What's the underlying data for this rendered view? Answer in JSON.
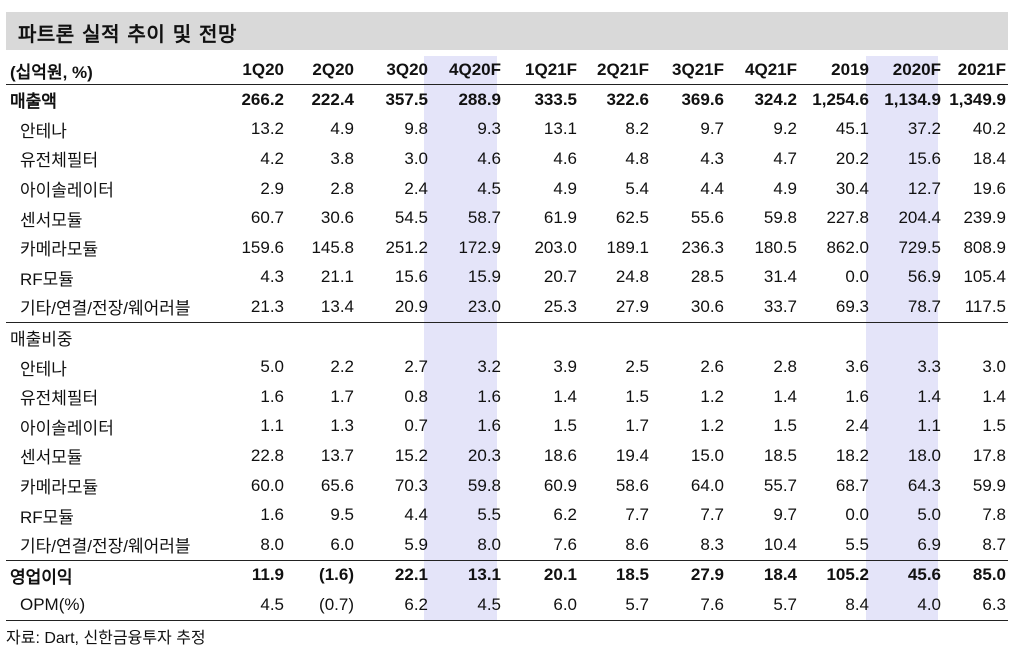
{
  "title": "파트론 실적 추이 및 전망",
  "header": {
    "unit": "(십억원, %)",
    "columns": [
      "1Q20",
      "2Q20",
      "3Q20",
      "4Q20F",
      "1Q21F",
      "2Q21F",
      "3Q21F",
      "4Q21F",
      "2019",
      "2020F",
      "2021F"
    ]
  },
  "rows": [
    {
      "label": "매출액",
      "values": [
        "266.2",
        "222.4",
        "357.5",
        "288.9",
        "333.5",
        "322.6",
        "369.6",
        "324.2",
        "1,254.6",
        "1,134.9",
        "1,349.9"
      ]
    },
    {
      "label": "안테나",
      "values": [
        "13.2",
        "4.9",
        "9.8",
        "9.3",
        "13.1",
        "8.2",
        "9.7",
        "9.2",
        "45.1",
        "37.2",
        "40.2"
      ]
    },
    {
      "label": "유전체필터",
      "values": [
        "4.2",
        "3.8",
        "3.0",
        "4.6",
        "4.6",
        "4.8",
        "4.3",
        "4.7",
        "20.2",
        "15.6",
        "18.4"
      ]
    },
    {
      "label": "아이솔레이터",
      "values": [
        "2.9",
        "2.8",
        "2.4",
        "4.5",
        "4.9",
        "5.4",
        "4.4",
        "4.9",
        "30.4",
        "12.7",
        "19.6"
      ]
    },
    {
      "label": "센서모듈",
      "values": [
        "60.7",
        "30.6",
        "54.5",
        "58.7",
        "61.9",
        "62.5",
        "55.6",
        "59.8",
        "227.8",
        "204.4",
        "239.9"
      ]
    },
    {
      "label": "카메라모듈",
      "values": [
        "159.6",
        "145.8",
        "251.2",
        "172.9",
        "203.0",
        "189.1",
        "236.3",
        "180.5",
        "862.0",
        "729.5",
        "808.9"
      ]
    },
    {
      "label": "RF모듈",
      "values": [
        "4.3",
        "21.1",
        "15.6",
        "15.9",
        "20.7",
        "24.8",
        "28.5",
        "31.4",
        "0.0",
        "56.9",
        "105.4"
      ]
    },
    {
      "label": "기타/연결/전장/웨어러블",
      "values": [
        "21.3",
        "13.4",
        "20.9",
        "23.0",
        "25.3",
        "27.9",
        "30.6",
        "33.7",
        "69.3",
        "78.7",
        "117.5"
      ]
    },
    {
      "label": "매출비중",
      "values": [
        "",
        "",
        "",
        "",
        "",
        "",
        "",
        "",
        "",
        "",
        ""
      ]
    },
    {
      "label": "안테나",
      "values": [
        "5.0",
        "2.2",
        "2.7",
        "3.2",
        "3.9",
        "2.5",
        "2.6",
        "2.8",
        "3.6",
        "3.3",
        "3.0"
      ]
    },
    {
      "label": "유전체필터",
      "values": [
        "1.6",
        "1.7",
        "0.8",
        "1.6",
        "1.4",
        "1.5",
        "1.2",
        "1.4",
        "1.6",
        "1.4",
        "1.4"
      ]
    },
    {
      "label": "아이솔레이터",
      "values": [
        "1.1",
        "1.3",
        "0.7",
        "1.6",
        "1.5",
        "1.7",
        "1.2",
        "1.5",
        "2.4",
        "1.1",
        "1.5"
      ]
    },
    {
      "label": "센서모듈",
      "values": [
        "22.8",
        "13.7",
        "15.2",
        "20.3",
        "18.6",
        "19.4",
        "15.0",
        "18.5",
        "18.2",
        "18.0",
        "17.8"
      ]
    },
    {
      "label": "카메라모듈",
      "values": [
        "60.0",
        "65.6",
        "70.3",
        "59.8",
        "60.9",
        "58.6",
        "64.0",
        "55.7",
        "68.7",
        "64.3",
        "59.9"
      ]
    },
    {
      "label": "RF모듈",
      "values": [
        "1.6",
        "9.5",
        "4.4",
        "5.5",
        "6.2",
        "7.7",
        "7.7",
        "9.7",
        "0.0",
        "5.0",
        "7.8"
      ]
    },
    {
      "label": "기타/연결/전장/웨어러블",
      "values": [
        "8.0",
        "6.0",
        "5.9",
        "8.0",
        "7.6",
        "8.6",
        "8.3",
        "10.4",
        "5.5",
        "6.9",
        "8.7"
      ]
    },
    {
      "label": "영업이익",
      "values": [
        "11.9",
        "(1.6)",
        "22.1",
        "13.1",
        "20.1",
        "18.5",
        "27.9",
        "18.4",
        "105.2",
        "45.6",
        "85.0"
      ]
    },
    {
      "label": "OPM(%)",
      "values": [
        "4.5",
        "(0.7)",
        "6.2",
        "4.5",
        "6.0",
        "5.7",
        "7.6",
        "5.7",
        "8.4",
        "4.0",
        "6.3"
      ]
    }
  ],
  "source": "자료: Dart, 신한금융투자 추정",
  "colors": {
    "title_bg": "#d9d9d9",
    "highlight_col": "#e4e4f9"
  }
}
